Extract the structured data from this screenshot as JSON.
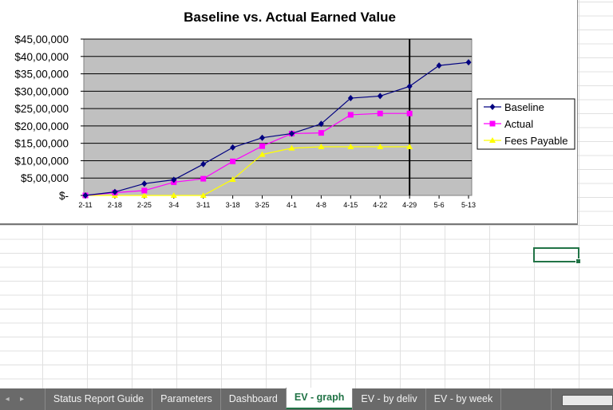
{
  "chart_data": {
    "type": "line",
    "title": "Baseline vs. Actual Earned Value",
    "xlabel": "",
    "ylabel": "",
    "categories": [
      "2-11",
      "2-18",
      "2-25",
      "3-4",
      "3-11",
      "3-18",
      "3-25",
      "4-1",
      "4-8",
      "4-15",
      "4-22",
      "4-29",
      "5-6",
      "5-13"
    ],
    "ylim": [
      0,
      4500000
    ],
    "ytick_values": [
      0,
      500000,
      1000000,
      1500000,
      2000000,
      2500000,
      3000000,
      3500000,
      4000000,
      4500000
    ],
    "ytick_labels": [
      "$-",
      "$5,00,000",
      "$10,00,000",
      "$15,00,000",
      "$20,00,000",
      "$25,00,000",
      "$30,00,000",
      "$35,00,000",
      "$40,00,000",
      "$45,00,000"
    ],
    "grid": true,
    "plot_background": "#c0c0c0",
    "marker_line_category": "4-29",
    "legend_position": "right",
    "series": [
      {
        "name": "Baseline",
        "color": "#000080",
        "marker": "diamond",
        "values": [
          0,
          100000,
          340000,
          450000,
          900000,
          1380000,
          1660000,
          1780000,
          2060000,
          2800000,
          2860000,
          3140000,
          3740000,
          3830000
        ]
      },
      {
        "name": "Actual",
        "color": "#ff00ff",
        "marker": "square",
        "values": [
          0,
          80000,
          140000,
          380000,
          480000,
          980000,
          1420000,
          1780000,
          1800000,
          2320000,
          2360000,
          2360000,
          null,
          null
        ]
      },
      {
        "name": "Fees Payable",
        "color": "#ffff00",
        "marker": "triangle",
        "values": [
          0,
          0,
          0,
          0,
          0,
          460000,
          1180000,
          1360000,
          1400000,
          1400000,
          1400000,
          1400000,
          null,
          null
        ]
      }
    ]
  },
  "sheet_tabs": {
    "tabs": [
      "Status Report Guide",
      "Parameters",
      "Dashboard",
      "EV - graph",
      "EV - by deliv",
      "EV - by week"
    ],
    "active": "EV - graph",
    "nav_prev": "◂",
    "nav_next": "▸",
    "add_sheet": "⊕",
    "more": "⋮"
  }
}
